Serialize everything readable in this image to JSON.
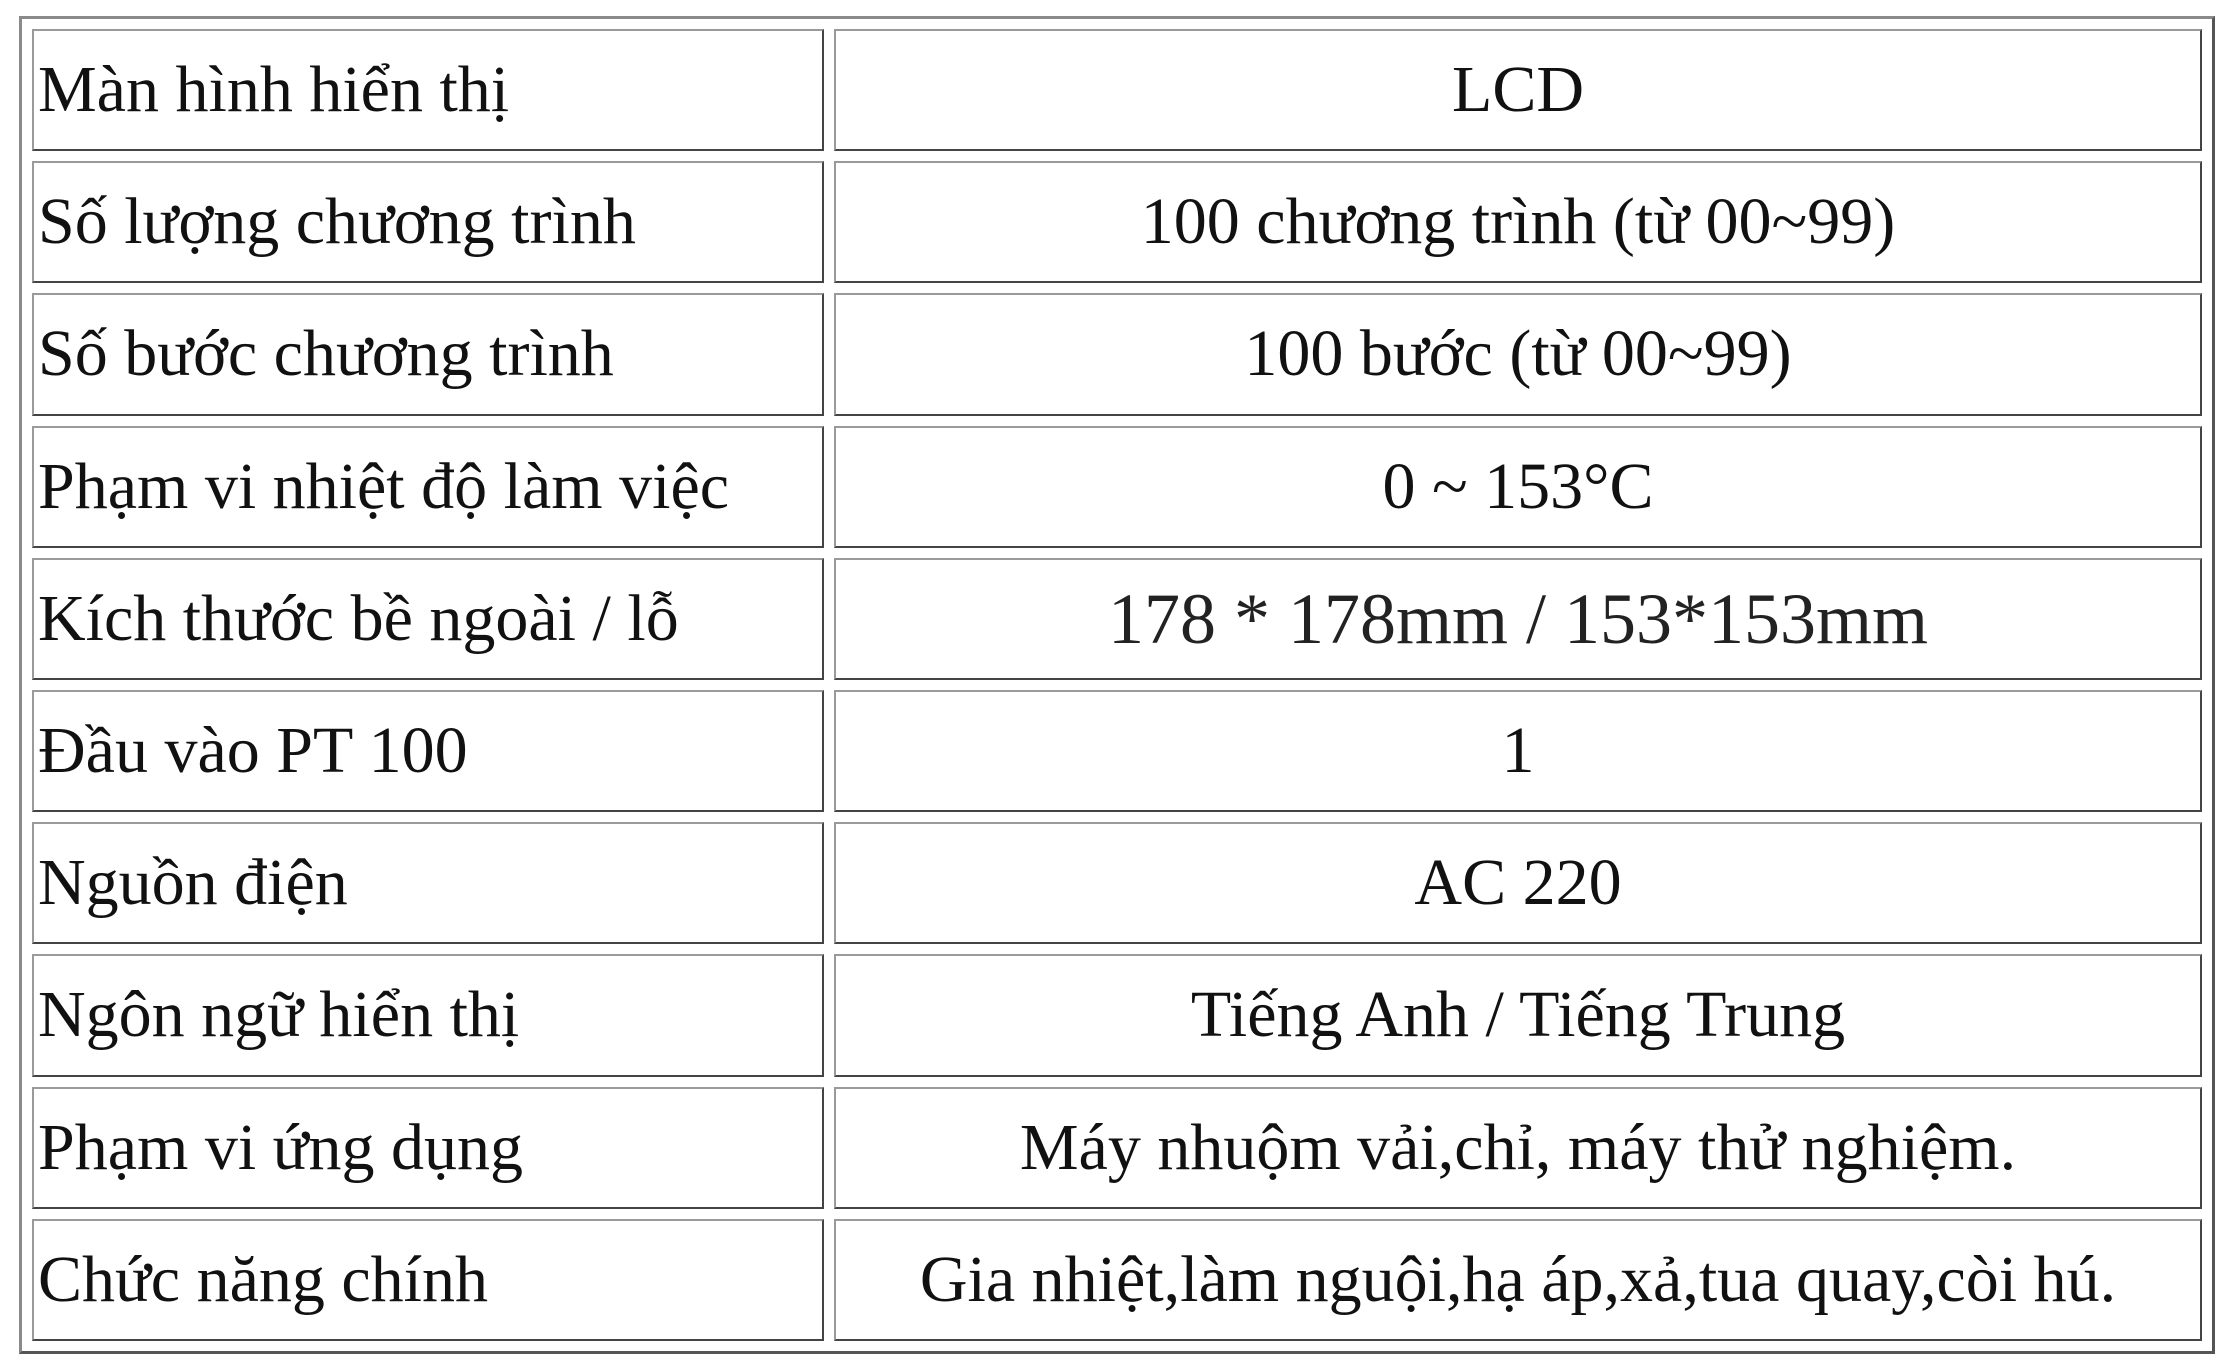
{
  "rows": [
    {
      "label": "Màn hình hiển thị",
      "value": "LCD"
    },
    {
      "label": "Số lượng chương trình",
      "value": "100 chương trình (từ 00~99)"
    },
    {
      "label": "Số bước chương trình",
      "value": "100 bước (từ 00~99)"
    },
    {
      "label": "Phạm vi nhiệt độ làm việc",
      "value": "0 ~ 153°C"
    },
    {
      "label": "Kích thước bề ngoài / lỗ",
      "value": "178 * 178mm / 153*153mm"
    },
    {
      "label": "Đầu vào PT 100",
      "value": "1"
    },
    {
      "label": "Nguồn điện",
      "value": "AC 220"
    },
    {
      "label": "Ngôn ngữ hiển thị",
      "value": "Tiếng Anh / Tiếng Trung"
    },
    {
      "label": "Phạm vi ứng dụng",
      "value": "Máy nhuộm vải,chỉ, máy thử nghiệm."
    },
    {
      "label": "Chức năng chính",
      "value": "Gia nhiệt,làm nguội,hạ áp,xả,tua quay,còi hú."
    }
  ]
}
